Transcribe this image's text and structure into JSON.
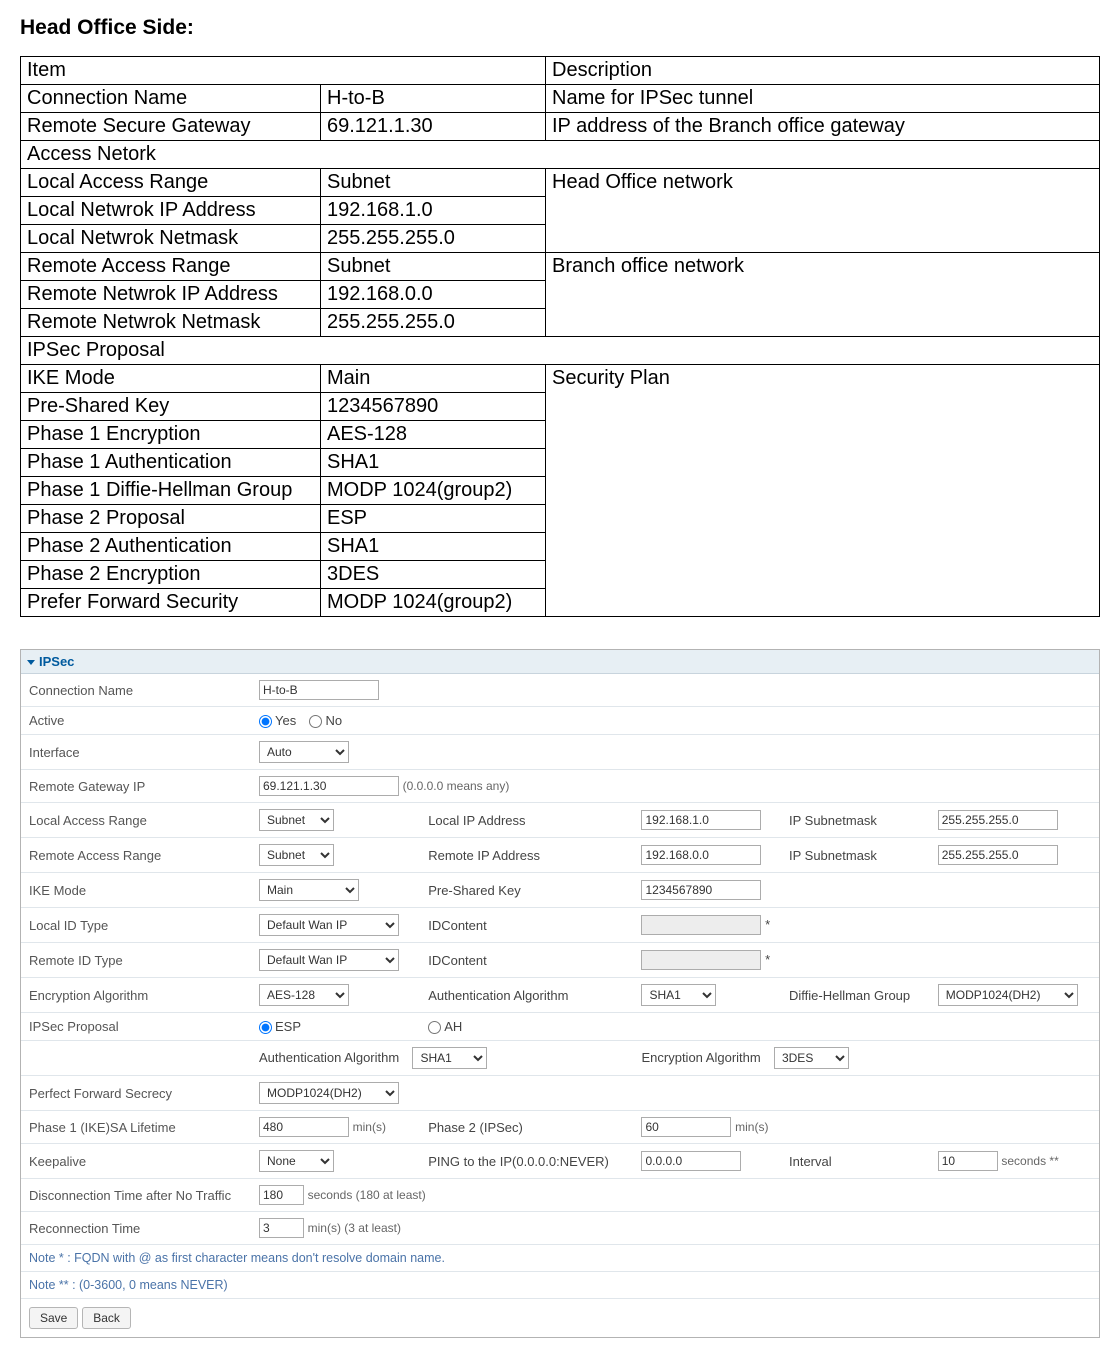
{
  "heading": "Head Office Side:",
  "spec_table": {
    "head_item": "Item",
    "head_desc": "Description",
    "sections": {
      "top": [
        {
          "item": "Connection Name",
          "val": "H-to-B",
          "desc": "Name for IPSec tunnel"
        },
        {
          "item": "Remote Secure Gateway",
          "val": "69.121.1.30",
          "desc": "IP address of the Branch office gateway"
        }
      ],
      "access_header": "Access Netork",
      "local": {
        "desc": "Head Office network",
        "rows": [
          {
            "item": "Local Access Range",
            "val": "Subnet"
          },
          {
            "item": "Local Netwrok IP Address",
            "val": "192.168.1.0"
          },
          {
            "item": "Local Netwrok Netmask",
            "val": "255.255.255.0"
          }
        ]
      },
      "remote": {
        "desc": "Branch office network",
        "rows": [
          {
            "item": "Remote Access Range",
            "val": "Subnet"
          },
          {
            "item": "Remote Netwrok IP Address",
            "val": "192.168.0.0"
          },
          {
            "item": "Remote Netwrok Netmask",
            "val": "255.255.255.0"
          }
        ]
      },
      "ipsec_header": "IPSec Proposal",
      "ipsec": {
        "desc": "Security Plan",
        "rows": [
          {
            "item": "IKE Mode",
            "val": "Main"
          },
          {
            "item": "Pre-Shared Key",
            "val": "1234567890"
          },
          {
            "item": "Phase 1 Encryption",
            "val": "AES-128"
          },
          {
            "item": "Phase 1 Authentication",
            "val": "SHA1"
          },
          {
            "item": "Phase 1 Diffie-Hellman Group",
            "val": "MODP 1024(group2)"
          },
          {
            "item": "Phase 2 Proposal",
            "val": "ESP"
          },
          {
            "item": "Phase 2 Authentication",
            "val": "SHA1"
          },
          {
            "item": "Phase 2 Encryption",
            "val": "3DES"
          },
          {
            "item": "Prefer Forward Security",
            "val": "MODP 1024(group2)"
          }
        ]
      }
    }
  },
  "panel": {
    "title": "IPSec",
    "labels": {
      "connection_name": "Connection Name",
      "active": "Active",
      "yes": "Yes",
      "no": "No",
      "interface": "Interface",
      "remote_gw": "Remote Gateway IP",
      "remote_gw_hint": "(0.0.0.0 means any)",
      "local_access_range": "Local Access Range",
      "local_ip": "Local IP Address",
      "ip_subnetmask": "IP Subnetmask",
      "remote_access_range": "Remote Access Range",
      "remote_ip": "Remote IP Address",
      "ike_mode": "IKE Mode",
      "preshared": "Pre-Shared Key",
      "local_id_type": "Local ID Type",
      "idcontent": "IDContent",
      "remote_id_type": "Remote ID Type",
      "enc_alg": "Encryption Algorithm",
      "auth_alg": "Authentication Algorithm",
      "dh_group": "Diffie-Hellman Group",
      "ipsec_proposal": "IPSec Proposal",
      "esp": "ESP",
      "ah": "AH",
      "pfs": "Perfect Forward Secrecy",
      "phase1_life": "Phase 1 (IKE)SA Lifetime",
      "mins": "min(s)",
      "phase2": "Phase 2 (IPSec)",
      "keepalive": "Keepalive",
      "ping_to": "PING to the IP(0.0.0.0:NEVER)",
      "interval": "Interval",
      "seconds_star": "seconds **",
      "disconn": "Disconnection Time after No Traffic",
      "disconn_hint": "seconds (180 at least)",
      "reconn": "Reconnection Time",
      "reconn_hint": "min(s) (3 at least)"
    },
    "values": {
      "connection_name": "H-to-B",
      "interface": "Auto",
      "remote_gw": "69.121.1.30",
      "local_range": "Subnet",
      "local_ip": "192.168.1.0",
      "local_mask": "255.255.255.0",
      "remote_range": "Subnet",
      "remote_ip": "192.168.0.0",
      "remote_mask": "255.255.255.0",
      "ike_mode": "Main",
      "preshared": "1234567890",
      "local_id_type": "Default Wan IP",
      "remote_id_type": "Default Wan IP",
      "idcontent_local": "",
      "idcontent_remote": "",
      "star": "*",
      "enc_alg": "AES-128",
      "auth_alg": "SHA1",
      "dh_group": "MODP1024(DH2)",
      "auth_alg2": "SHA1",
      "enc_alg2": "3DES",
      "pfs": "MODP1024(DH2)",
      "phase1_life": "480",
      "phase2_life": "60",
      "keepalive": "None",
      "ping_ip": "0.0.0.0",
      "interval": "10",
      "disconn": "180",
      "reconn": "3"
    },
    "notes": {
      "n1": "Note * : FQDN with @ as first character means don't resolve domain name.",
      "n2": "Note ** : (0-3600, 0 means NEVER)"
    },
    "buttons": {
      "save": "Save",
      "back": "Back"
    }
  }
}
